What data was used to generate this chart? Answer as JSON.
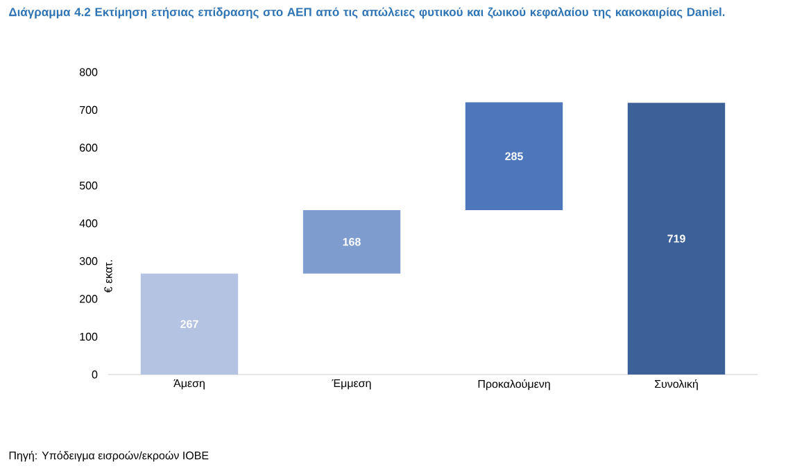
{
  "chart_data": {
    "type": "bar",
    "title": "Διάγραμμα 4.2 Εκτίμηση ετήσιας επίδρασης στο ΑΕΠ από τις απώλειες φυτικού και ζωικού κεφαλαίου της κακοκαιρίας Daniel.",
    "ylabel": "€ εκατ.",
    "categories": [
      "Άμεση",
      "Έμμεση",
      "Προκαλούμενη",
      "Συνολική"
    ],
    "values": [
      267,
      168,
      285,
      719
    ],
    "base": [
      0,
      267,
      435,
      0
    ],
    "colors": [
      "#b4c3e2",
      "#7f9cce",
      "#4d77ba",
      "#3b6198"
    ],
    "data_labels": true,
    "ylim": [
      0,
      800
    ],
    "yticks": [
      0,
      100,
      200,
      300,
      400,
      500,
      600,
      700,
      800
    ],
    "annotations": [
      "Πηγή: Υπόδειγμα εισροών/εκροών ΙΟΒΕ"
    ]
  }
}
